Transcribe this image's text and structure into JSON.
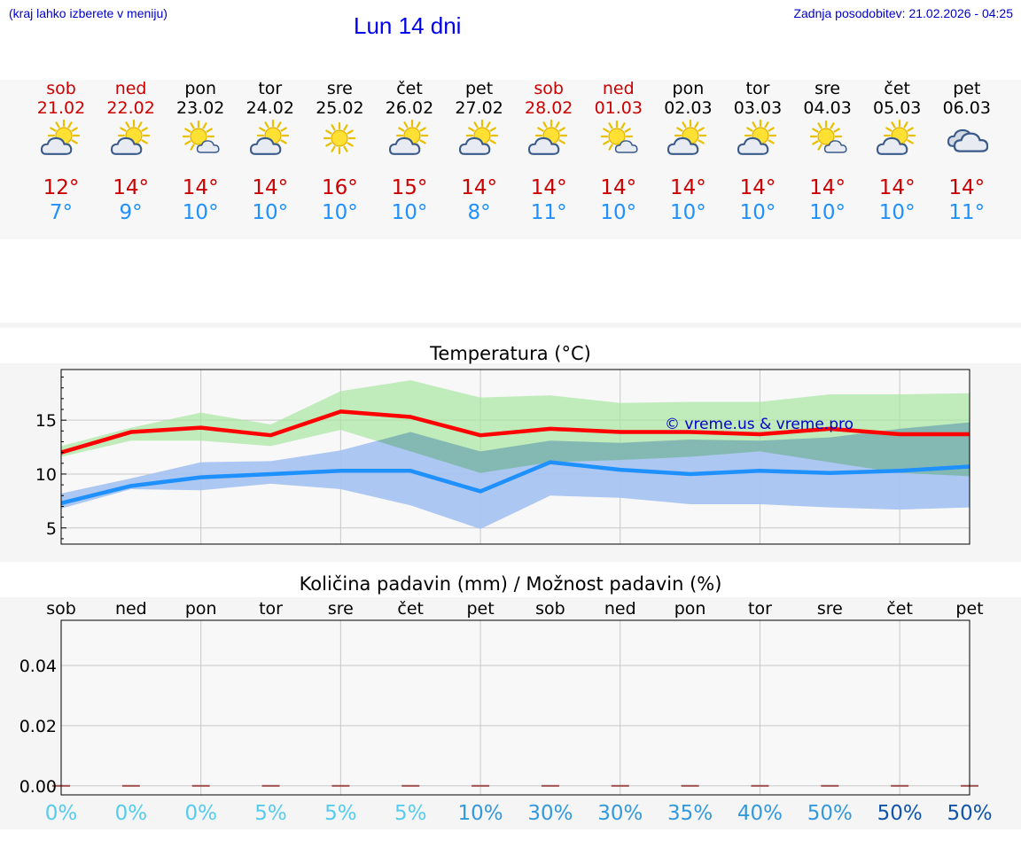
{
  "header": {
    "left_note": "(kraj lahko izberete v meniju)",
    "title": "Lun 14 dni",
    "updated": "Zadnja posodobitev: 21.02.2026 - 04:25"
  },
  "colors": {
    "weekend": "#cc0000",
    "weekday": "#000000",
    "tmax": "#ff0000",
    "tmin": "#1e90ff",
    "tmax_band": "#a8e6a0",
    "tmin_band": "#a8c4f0",
    "overlap": "#7fc7a8",
    "watermark": "#0000cc"
  },
  "days": [
    {
      "name": "sob",
      "date": "21.02",
      "weekend": true,
      "icon": "sun-cloud-icon",
      "tmax": "12°",
      "tmin": "7°"
    },
    {
      "name": "ned",
      "date": "22.02",
      "weekend": true,
      "icon": "sun-cloud-icon",
      "tmax": "14°",
      "tmin": "9°"
    },
    {
      "name": "pon",
      "date": "23.02",
      "weekend": false,
      "icon": "sun-small-cloud-icon",
      "tmax": "14°",
      "tmin": "10°"
    },
    {
      "name": "tor",
      "date": "24.02",
      "weekend": false,
      "icon": "sun-cloud-icon",
      "tmax": "14°",
      "tmin": "10°"
    },
    {
      "name": "sre",
      "date": "25.02",
      "weekend": false,
      "icon": "sun-icon",
      "tmax": "16°",
      "tmin": "10°"
    },
    {
      "name": "čet",
      "date": "26.02",
      "weekend": false,
      "icon": "sun-cloud-icon",
      "tmax": "15°",
      "tmin": "10°"
    },
    {
      "name": "pet",
      "date": "27.02",
      "weekend": false,
      "icon": "sun-cloud-icon",
      "tmax": "14°",
      "tmin": "8°"
    },
    {
      "name": "sob",
      "date": "28.02",
      "weekend": true,
      "icon": "sun-cloud-icon",
      "tmax": "14°",
      "tmin": "11°"
    },
    {
      "name": "ned",
      "date": "01.03",
      "weekend": true,
      "icon": "sun-small-cloud-icon",
      "tmax": "14°",
      "tmin": "10°"
    },
    {
      "name": "pon",
      "date": "02.03",
      "weekend": false,
      "icon": "sun-cloud-icon",
      "tmax": "14°",
      "tmin": "10°"
    },
    {
      "name": "tor",
      "date": "03.03",
      "weekend": false,
      "icon": "sun-cloud-icon",
      "tmax": "14°",
      "tmin": "10°"
    },
    {
      "name": "sre",
      "date": "04.03",
      "weekend": false,
      "icon": "sun-small-cloud-icon",
      "tmax": "14°",
      "tmin": "10°"
    },
    {
      "name": "čet",
      "date": "05.03",
      "weekend": false,
      "icon": "sun-cloud-icon",
      "tmax": "14°",
      "tmin": "10°"
    },
    {
      "name": "pet",
      "date": "06.03",
      "weekend": false,
      "icon": "cloud-icon",
      "tmax": "14°",
      "tmin": "11°"
    }
  ],
  "chart_data": [
    {
      "type": "line",
      "title": "Temperatura (°C)",
      "x": [
        0,
        1,
        2,
        3,
        4,
        5,
        6,
        7,
        8,
        9,
        10,
        11,
        12,
        13
      ],
      "ylim": [
        3.5,
        19.7
      ],
      "yticks": [
        5,
        10,
        15
      ],
      "grid": true,
      "watermark": "© vreme.us & vreme.pro",
      "series": [
        {
          "name": "tmax",
          "values": [
            12.0,
            13.9,
            14.3,
            13.6,
            15.8,
            15.3,
            13.6,
            14.2,
            13.9,
            13.9,
            13.7,
            14.2,
            13.7,
            13.7
          ]
        },
        {
          "name": "tmin",
          "values": [
            7.3,
            8.9,
            9.7,
            10.0,
            10.3,
            10.3,
            8.4,
            11.1,
            10.4,
            10.0,
            10.3,
            10.1,
            10.3,
            10.7
          ]
        }
      ],
      "bands": [
        {
          "name": "tmax_range",
          "lower": [
            11.6,
            13.1,
            13.1,
            12.6,
            14.1,
            12.1,
            10.1,
            11.1,
            11.3,
            11.6,
            12.1,
            11.1,
            10.1,
            9.8
          ],
          "upper": [
            12.6,
            14.3,
            15.7,
            14.6,
            17.7,
            18.7,
            17.1,
            17.3,
            16.6,
            16.7,
            16.7,
            17.4,
            17.4,
            17.5
          ]
        },
        {
          "name": "tmin_range",
          "lower": [
            6.8,
            8.6,
            8.5,
            9.1,
            8.6,
            7.1,
            4.9,
            8.0,
            7.8,
            7.2,
            7.2,
            6.9,
            6.7,
            6.9
          ],
          "upper": [
            8.2,
            9.6,
            11.1,
            11.2,
            12.2,
            13.9,
            12.1,
            13.1,
            12.9,
            13.2,
            13.1,
            13.4,
            14.2,
            14.8
          ]
        }
      ]
    },
    {
      "type": "bar",
      "title": "Količina padavin (mm) / Možnost padavin (%)",
      "categories": [
        "sob",
        "ned",
        "pon",
        "tor",
        "sre",
        "čet",
        "pet",
        "sob",
        "ned",
        "pon",
        "tor",
        "sre",
        "čet",
        "pet"
      ],
      "values": [
        0,
        0,
        0,
        0,
        0,
        0,
        0,
        0,
        0,
        0,
        0,
        0,
        0,
        0
      ],
      "ylim": [
        -0.003,
        0.055
      ],
      "yticks": [
        "0.00",
        "0.02",
        "0.04"
      ],
      "ytick_values": [
        0,
        0.02,
        0.04
      ],
      "probabilities": [
        "0%",
        "0%",
        "0%",
        "5%",
        "5%",
        "5%",
        "10%",
        "30%",
        "30%",
        "35%",
        "40%",
        "50%",
        "50%",
        "50%"
      ],
      "probability_colors": [
        "#55ccee",
        "#55ccee",
        "#55ccee",
        "#55ccee",
        "#55ccee",
        "#55ccee",
        "#3399dd",
        "#3399dd",
        "#3399dd",
        "#3399dd",
        "#3399dd",
        "#3399dd",
        "#1155aa",
        "#1155aa"
      ]
    }
  ]
}
